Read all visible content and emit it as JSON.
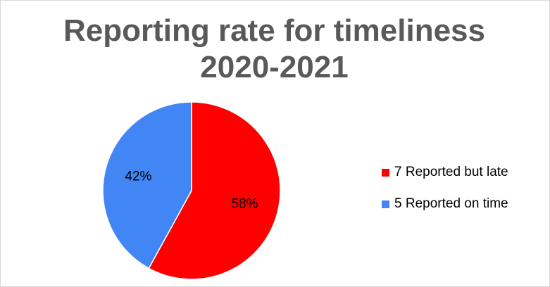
{
  "chart_data": {
    "type": "pie",
    "title_lines": [
      "Reporting rate for timeliness",
      "2020-2021"
    ],
    "slices": [
      {
        "label": "7 Reported but late",
        "count": 7,
        "value": 58,
        "data_label": "58%",
        "color": "#ff0000"
      },
      {
        "label": "5 Reported on time",
        "count": 5,
        "value": 42,
        "data_label": "42%",
        "color": "#4285f4"
      }
    ],
    "legend_placement": "right"
  }
}
